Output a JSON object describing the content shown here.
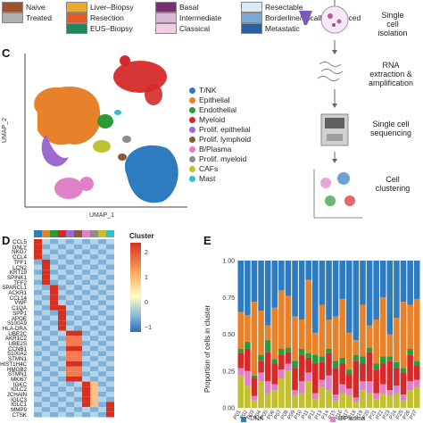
{
  "top_legend": [
    {
      "label": "Naive",
      "color": "#a0522d"
    },
    {
      "label": "Treated",
      "color": "#b0b0b0"
    },
    {
      "label": "Liver–Biopsy",
      "color": "#f0a830"
    },
    {
      "label": "Resection",
      "color": "#e05a2c"
    },
    {
      "label": "EUS–Biopsy",
      "color": "#1a8a5a"
    },
    {
      "label": "Basal",
      "color": "#7a2f6e"
    },
    {
      "label": "Intermediate",
      "color": "#d8b8d8"
    },
    {
      "label": "Classical",
      "color": "#f4cce4"
    },
    {
      "label": "Resectable",
      "color": "#dce8f2"
    },
    {
      "label": "Borderline/Locally Advanced",
      "color": "#7aaad4"
    },
    {
      "label": "Metastatic",
      "color": "#2a5fa0"
    }
  ],
  "panels": {
    "c": "C",
    "d": "D",
    "e": "E"
  },
  "umap": {
    "xlabel": "UMAP_1",
    "ylabel": "UMAP_2",
    "clusters": [
      {
        "name": "T/NK",
        "color": "#2f7bbf"
      },
      {
        "name": "Epithelial",
        "color": "#e8822a"
      },
      {
        "name": "Endothelial",
        "color": "#2a9a3a"
      },
      {
        "name": "Myeloid",
        "color": "#d62a2a"
      },
      {
        "name": "Prolif. epithelial",
        "color": "#9a6ad0"
      },
      {
        "name": "Prolif. lymphoid",
        "color": "#8a5a3a"
      },
      {
        "name": "B/Plasma",
        "color": "#e080c8"
      },
      {
        "name": "Prolif. myeloid",
        "color": "#8c8c8c"
      },
      {
        "name": "CAFs",
        "color": "#c0c030"
      },
      {
        "name": "Mast",
        "color": "#30c0d0"
      }
    ]
  },
  "workflow": {
    "steps": [
      "Single\ncell\nisolation",
      "RNA\nextraction &\namplification",
      "Single cell\nsequencing",
      "Cell\nclustering"
    ]
  },
  "heatmap": {
    "cluster_label": "Cluster",
    "colorbar_ticks": [
      "2",
      "1",
      "0",
      "−1"
    ],
    "genes": [
      "CCL5",
      "GNLY",
      "NKG7",
      "CCL4",
      "TFF1",
      "LCN2",
      "KRT19",
      "SPINK1",
      "TFF2",
      "SPARCL1",
      "ACKR1",
      "CCL14",
      "VWF",
      "C1QA",
      "SPP1",
      "APOE",
      "S100A9",
      "HLA-DRA",
      "UBE2C",
      "AKR1C2",
      "UBE2S",
      "CCNB1",
      "S100A2",
      "STMN1",
      "HIST1H4C",
      "HMGB2",
      "STMN1",
      "MKI67",
      "IGKC",
      "IGLC2",
      "JCHAIN",
      "IGLC3",
      "IGLC1",
      "MMP9",
      "CTSK"
    ]
  },
  "chart_data": {
    "type": "bar",
    "ylabel": "Proportion of cells in cluster",
    "ylim": [
      0,
      1
    ],
    "yticks": [
      "0.00",
      "0.25",
      "0.50",
      "0.75",
      "1.00"
    ],
    "categories": [
      "P01",
      "P02",
      "P03",
      "P04",
      "P05",
      "P06",
      "P07",
      "P08",
      "P09",
      "P10",
      "P11",
      "P12",
      "P13",
      "P14",
      "P15",
      "P16",
      "P17",
      "P18",
      "P19",
      "P20",
      "P21",
      "P22",
      "P23",
      "P24",
      "P25",
      "P26",
      "P27"
    ],
    "series": [
      {
        "color": "#c0c030",
        "values": [
          0.22,
          0.15,
          0.05,
          0.18,
          0.1,
          0.12,
          0.2,
          0.25,
          0.08,
          0.1,
          0.18,
          0.06,
          0.14,
          0.12,
          0.05,
          0.1,
          0.08,
          0.04,
          0.12,
          0.1,
          0.06,
          0.1,
          0.08,
          0.1,
          0.05,
          0.12,
          0.14
        ]
      },
      {
        "color": "#e080c8",
        "values": [
          0.05,
          0.1,
          0.03,
          0.06,
          0.08,
          0.04,
          0.06,
          0.05,
          0.04,
          0.08,
          0.06,
          0.04,
          0.05,
          0.1,
          0.04,
          0.06,
          0.05,
          0.03,
          0.06,
          0.08,
          0.04,
          0.06,
          0.04,
          0.05,
          0.04,
          0.06,
          0.05
        ]
      },
      {
        "color": "#d62a2a",
        "values": [
          0.1,
          0.15,
          0.12,
          0.08,
          0.2,
          0.14,
          0.1,
          0.08,
          0.15,
          0.18,
          0.1,
          0.2,
          0.12,
          0.15,
          0.18,
          0.14,
          0.1,
          0.25,
          0.12,
          0.2,
          0.16,
          0.14,
          0.2,
          0.12,
          0.15,
          0.18,
          0.1
        ]
      },
      {
        "color": "#2a9a3a",
        "values": [
          0.03,
          0.05,
          0.02,
          0.04,
          0.08,
          0.03,
          0.04,
          0.03,
          0.05,
          0.04,
          0.03,
          0.06,
          0.04,
          0.03,
          0.05,
          0.04,
          0.03,
          0.04,
          0.05,
          0.03,
          0.04,
          0.05,
          0.03,
          0.04,
          0.03,
          0.04,
          0.03
        ]
      },
      {
        "color": "#e8822a",
        "values": [
          0.25,
          0.18,
          0.5,
          0.3,
          0.1,
          0.35,
          0.4,
          0.35,
          0.3,
          0.2,
          0.5,
          0.15,
          0.35,
          0.2,
          0.3,
          0.4,
          0.25,
          0.1,
          0.35,
          0.15,
          0.3,
          0.4,
          0.15,
          0.3,
          0.45,
          0.3,
          0.42
        ]
      },
      {
        "color": "#2f7bbf",
        "values": [
          0.35,
          0.37,
          0.28,
          0.34,
          0.44,
          0.32,
          0.2,
          0.24,
          0.38,
          0.4,
          0.13,
          0.49,
          0.3,
          0.4,
          0.38,
          0.26,
          0.49,
          0.54,
          0.3,
          0.44,
          0.4,
          0.25,
          0.5,
          0.39,
          0.28,
          0.3,
          0.26
        ]
      }
    ],
    "legend_partial": [
      "T/NK",
      "B/Plasma"
    ]
  }
}
